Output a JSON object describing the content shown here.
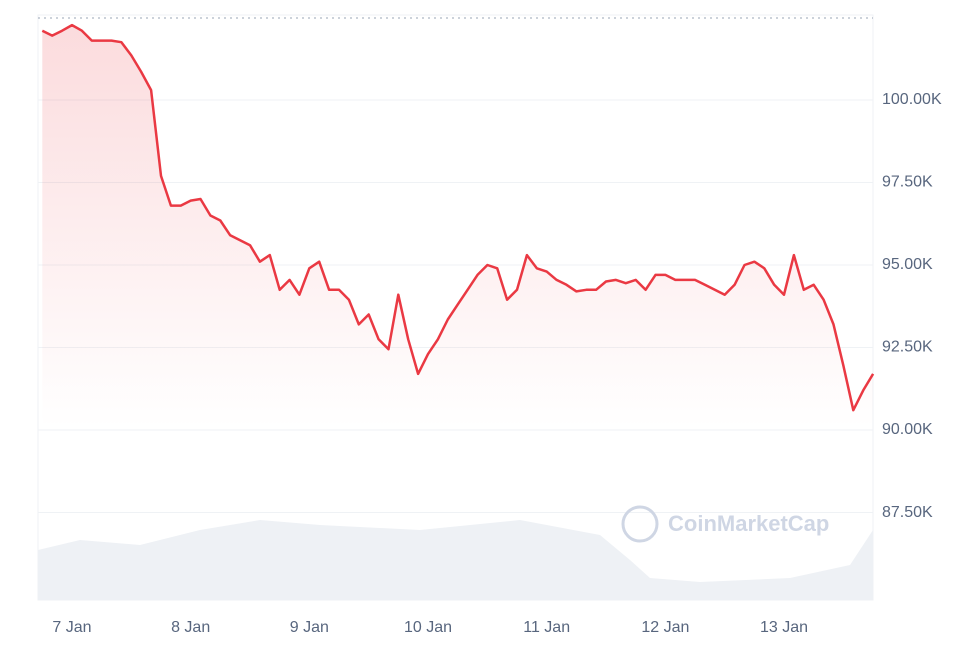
{
  "chart_data": {
    "type": "line",
    "watermark": "CoinMarketCap",
    "categories": [
      null,
      null,
      null,
      "7 Jan",
      null,
      null,
      null,
      null,
      null,
      null,
      null,
      null,
      null,
      null,
      null,
      "8 Jan",
      null,
      null,
      null,
      null,
      null,
      null,
      null,
      null,
      null,
      null,
      null,
      "9 Jan",
      null,
      null,
      null,
      null,
      null,
      null,
      null,
      null,
      null,
      null,
      null,
      "10 Jan",
      null,
      null,
      null,
      null,
      null,
      null,
      null,
      null,
      null,
      null,
      null,
      "11 Jan",
      null,
      null,
      null,
      null,
      null,
      null,
      null,
      null,
      null,
      null,
      null,
      "12 Jan",
      null,
      null,
      null,
      null,
      null,
      null,
      null,
      null,
      null,
      null,
      null,
      "13 Jan",
      null,
      null,
      null,
      null,
      null,
      null,
      null,
      null,
      null
    ],
    "series": [
      {
        "color": "#ea3943",
        "values": [
          102100,
          101950,
          102100,
          102270,
          102100,
          101800,
          101800,
          101800,
          101750,
          101350,
          100850,
          100300,
          97700,
          96800,
          96800,
          96950,
          97000,
          96500,
          96350,
          95900,
          95750,
          95600,
          95100,
          95300,
          94250,
          94550,
          94100,
          94900,
          95100,
          94250,
          94250,
          93950,
          93200,
          93500,
          92750,
          92450,
          94100,
          92750,
          91700,
          92300,
          92750,
          93350,
          93800,
          94250,
          94700,
          95000,
          94900,
          93950,
          94250,
          95300,
          94900,
          94800,
          94550,
          94400,
          94200,
          94250,
          94250,
          94500,
          94550,
          94450,
          94550,
          94250,
          94700,
          94700,
          94550,
          94550,
          94550,
          94400,
          94250,
          94100,
          94400,
          95000,
          95100,
          94900,
          94400,
          94100,
          95300,
          94250,
          94400,
          93950,
          93200,
          91950,
          90600,
          91200,
          91700
        ]
      }
    ],
    "ylim": [
      84850,
      102575
    ],
    "yticks": [
      {
        "value": 87500,
        "label": "87.50K"
      },
      {
        "value": 90000,
        "label": "90.00K"
      },
      {
        "value": 92500,
        "label": "92.50K"
      },
      {
        "value": 95000,
        "label": "95.00K"
      },
      {
        "value": 97500,
        "label": "97.50K"
      },
      {
        "value": 100000,
        "label": "100.00K"
      }
    ],
    "grid": true
  }
}
